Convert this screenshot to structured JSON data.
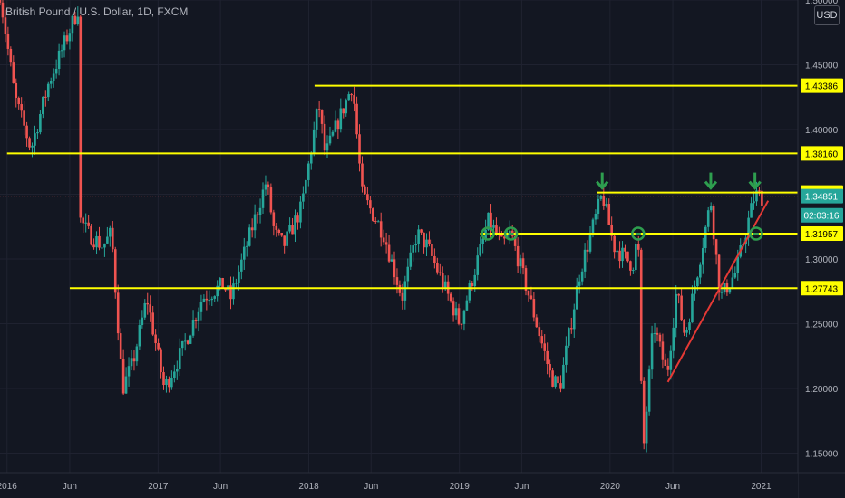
{
  "header": {
    "title": "British Pound / U.S. Dollar, 1D, FXCM",
    "currency_button": "USD"
  },
  "colors": {
    "background": "#131722",
    "up": "#26a69a",
    "down": "#ef5350",
    "level": "#ffff00",
    "trend": "#e53935",
    "marker": "#2e9e4f",
    "axis_text": "#b2b5be"
  },
  "chart_data": {
    "type": "candlestick",
    "title": "British Pound / U.S. Dollar, 1D, FXCM",
    "ylim": [
      1.135,
      1.5
    ],
    "y_ticks": [
      1.15,
      1.2,
      1.25,
      1.3,
      1.35,
      1.4,
      1.45,
      1.5
    ],
    "y_tick_labels": [
      "1.15000",
      "1.20000",
      "1.25000",
      "1.30000",
      "1.35000",
      "1.40000",
      "1.45000",
      "1.50000"
    ],
    "x_range": [
      "2015-12-15",
      "2021-03-31"
    ],
    "x_ticks": [
      {
        "date": "2016-01-01",
        "label": "2016"
      },
      {
        "date": "2016-06-01",
        "label": "Jun"
      },
      {
        "date": "2017-01-01",
        "label": "2017"
      },
      {
        "date": "2017-06-01",
        "label": "Jun"
      },
      {
        "date": "2018-01-01",
        "label": "2018"
      },
      {
        "date": "2018-06-01",
        "label": "Jun"
      },
      {
        "date": "2019-01-01",
        "label": "2019"
      },
      {
        "date": "2019-06-01",
        "label": "Jun"
      },
      {
        "date": "2020-01-01",
        "label": "2020"
      },
      {
        "date": "2020-06-01",
        "label": "Jun"
      },
      {
        "date": "2021-01-01",
        "label": "2021"
      }
    ],
    "price_path": [
      [
        "2015-12-15",
        1.505
      ],
      [
        "2016-01-20",
        1.425
      ],
      [
        "2016-02-28",
        1.385
      ],
      [
        "2016-04-10",
        1.435
      ],
      [
        "2016-05-05",
        1.455
      ],
      [
        "2016-06-23",
        1.495
      ],
      [
        "2016-06-27",
        1.33
      ],
      [
        "2016-07-15",
        1.32
      ],
      [
        "2016-08-20",
        1.31
      ],
      [
        "2016-09-10",
        1.32
      ],
      [
        "2016-10-07",
        1.2
      ],
      [
        "2016-11-01",
        1.22
      ],
      [
        "2016-12-05",
        1.27
      ],
      [
        "2017-01-16",
        1.2
      ],
      [
        "2017-03-01",
        1.23
      ],
      [
        "2017-04-18",
        1.27
      ],
      [
        "2017-06-08",
        1.28
      ],
      [
        "2017-06-26",
        1.27
      ],
      [
        "2017-09-20",
        1.36
      ],
      [
        "2017-10-10",
        1.32
      ],
      [
        "2017-11-01",
        1.31
      ],
      [
        "2017-12-15",
        1.34
      ],
      [
        "2018-01-25",
        1.42
      ],
      [
        "2018-02-10",
        1.38
      ],
      [
        "2018-04-17",
        1.435
      ],
      [
        "2018-05-10",
        1.35
      ],
      [
        "2018-07-01",
        1.32
      ],
      [
        "2018-08-15",
        1.27
      ],
      [
        "2018-09-20",
        1.32
      ],
      [
        "2018-10-15",
        1.31
      ],
      [
        "2019-01-02",
        1.25
      ],
      [
        "2019-03-13",
        1.33
      ],
      [
        "2019-04-15",
        1.31
      ],
      [
        "2019-05-05",
        1.32
      ],
      [
        "2019-06-20",
        1.27
      ],
      [
        "2019-08-10",
        1.21
      ],
      [
        "2019-09-01",
        1.2
      ],
      [
        "2019-10-20",
        1.29
      ],
      [
        "2019-12-13",
        1.35
      ],
      [
        "2020-01-10",
        1.31
      ],
      [
        "2020-02-25",
        1.295
      ],
      [
        "2020-03-09",
        1.32
      ],
      [
        "2020-03-20",
        1.145
      ],
      [
        "2020-04-15",
        1.25
      ],
      [
        "2020-05-18",
        1.21
      ],
      [
        "2020-06-10",
        1.275
      ],
      [
        "2020-07-01",
        1.24
      ],
      [
        "2020-09-01",
        1.345
      ],
      [
        "2020-09-24",
        1.27
      ],
      [
        "2020-11-01",
        1.29
      ],
      [
        "2020-12-17",
        1.35
      ],
      [
        "2021-01-04",
        1.348
      ]
    ],
    "levels": [
      {
        "price": 1.43386,
        "label": "1.43386",
        "from": "2018-01-15"
      },
      {
        "price": 1.3816,
        "label": "1.38160",
        "from": "2016-01-01"
      },
      {
        "price": 1.35135,
        "label": "1.35135",
        "from": "2019-12-01"
      },
      {
        "price": 1.31957,
        "label": "1.31957",
        "from": "2019-02-20"
      },
      {
        "price": 1.27743,
        "label": "1.27743",
        "from": "2016-06-01"
      }
    ],
    "current_price": {
      "price": 1.34851,
      "label": "1.34851"
    },
    "countdown": {
      "price": 1.3338,
      "label": "02:03:16"
    },
    "trendline": [
      [
        "2020-05-20",
        1.205
      ],
      [
        "2021-01-18",
        1.345
      ]
    ],
    "markers_down_arrow": [
      {
        "date": "2019-12-13",
        "price": 1.35135
      },
      {
        "date": "2020-09-01",
        "price": 1.35135
      },
      {
        "date": "2020-12-17",
        "price": 1.35135
      }
    ],
    "markers_circle": [
      {
        "date": "2019-03-11",
        "price": 1.31957
      },
      {
        "date": "2019-05-06",
        "price": 1.31957
      },
      {
        "date": "2020-03-09",
        "price": 1.31957
      },
      {
        "date": "2020-12-20",
        "price": 1.31957
      }
    ]
  }
}
